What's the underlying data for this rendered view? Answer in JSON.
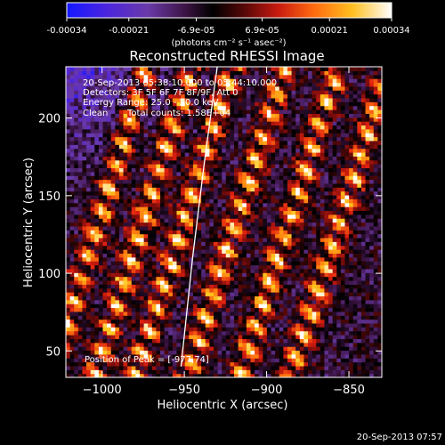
{
  "chart_data": {
    "type": "heatmap",
    "title": "Reconstructed RHESSI Image",
    "xlabel": "Heliocentric X (arcsec)",
    "ylabel": "Heliocentric Y (arcsec)",
    "xlim": [
      -1022,
      -830
    ],
    "ylim": [
      33,
      233
    ],
    "x_ticks": [
      -1000,
      -950,
      -900,
      -850
    ],
    "y_ticks": [
      50,
      100,
      150,
      200
    ],
    "grid": false,
    "colorbar": {
      "ticks": [
        -0.00034,
        -0.00021,
        -6.9e-05,
        6.9e-05,
        0.00021,
        0.00034
      ],
      "tick_labels": [
        "-0.00034",
        "-0.00021",
        "-6.9e-05",
        "6.9e-05",
        "0.00021",
        "0.00034"
      ],
      "range": [
        -0.00034,
        0.00034
      ],
      "units": "(photons cm⁻² s⁻¹ asec⁻²)",
      "colormap": "blue-purple-black-red-orange-yellow-white"
    },
    "annotations": {
      "time_range": "20-Sep-2013 05:38:10.000 to 05:44:10.000",
      "detectors": "Detectors: 3F 5F 6F 7F 8F/9F, Att 0",
      "energy_range": "Energy Range: 25.0 - 50.0 keV",
      "method": "Clean",
      "total_counts": "Total counts: 1.58E+04",
      "peak_position": "Position of Peak = [-977,74]"
    },
    "bright_stripes_x": [
      -1012,
      -985,
      -960,
      -928,
      -896,
      -865
    ],
    "stripe_slope": 0.3,
    "limb_line": {
      "x": [
        -952,
        -945,
        -938,
        -930
      ],
      "y": [
        40,
        110,
        170,
        233
      ]
    }
  },
  "timestamp": "20-Sep-2013 07:57",
  "colors": {
    "background": "#000000",
    "foreground": "#ffffff",
    "colormap_stops": [
      "#1418ff",
      "#5a2ad0",
      "#6a3aa8",
      "#3a1240",
      "#000000",
      "#7a0c0c",
      "#e02010",
      "#ff7a10",
      "#ffc820",
      "#ffffff"
    ]
  }
}
